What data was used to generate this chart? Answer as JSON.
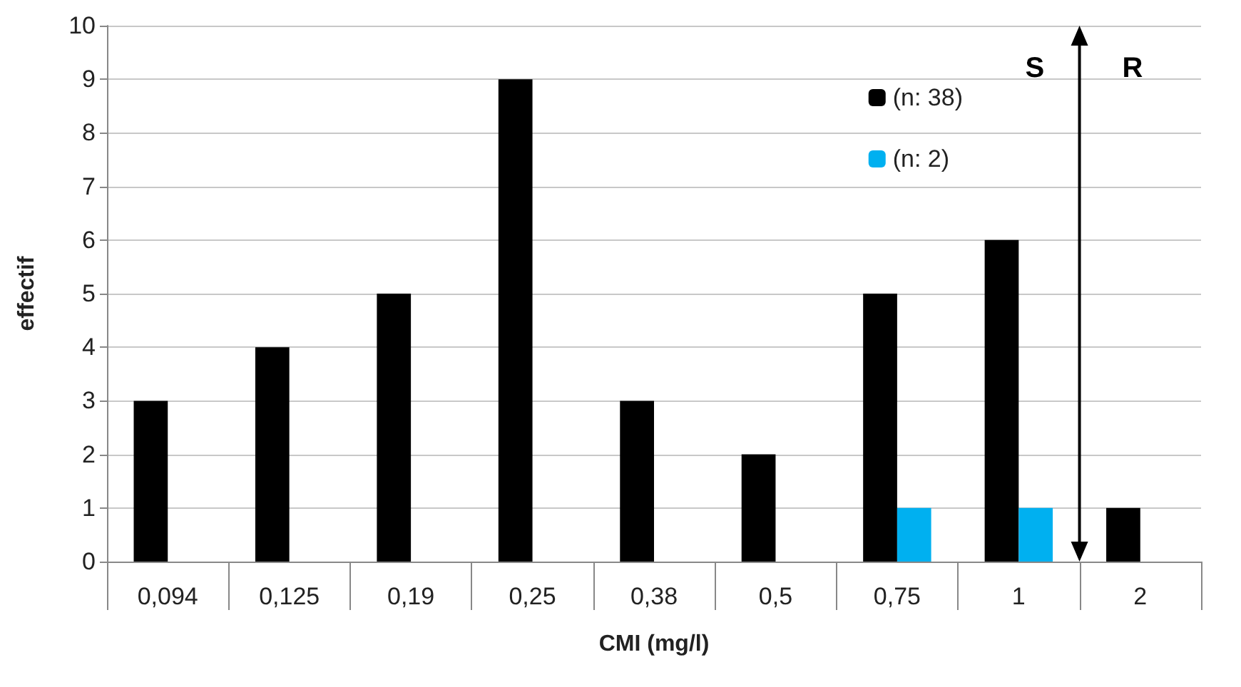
{
  "chart_data": {
    "type": "bar",
    "xlabel": "CMI (mg/l)",
    "ylabel": "effectif",
    "categories": [
      "0,094",
      "0,125",
      "0,19",
      "0,25",
      "0,38",
      "0,5",
      "0,75",
      "1",
      "2"
    ],
    "series": [
      {
        "name": "(n: 38)",
        "color": "#000000",
        "values": [
          3,
          4,
          5,
          9,
          3,
          2,
          5,
          6,
          1
        ]
      },
      {
        "name": "(n: 2)",
        "color": "#00b0f0",
        "values": [
          null,
          null,
          null,
          null,
          null,
          null,
          1,
          1,
          null
        ]
      }
    ],
    "ylim": [
      0,
      10
    ],
    "yticks": [
      0,
      1,
      2,
      3,
      4,
      5,
      6,
      7,
      8,
      9,
      10
    ],
    "grid": "y",
    "legend": "top right",
    "annotations": [
      "S",
      "R"
    ]
  }
}
